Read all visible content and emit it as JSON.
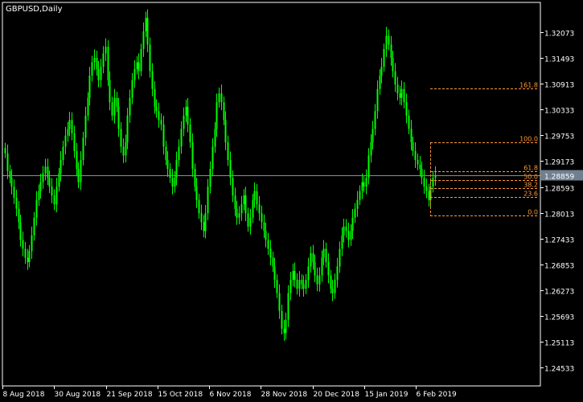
{
  "window": {
    "symbol_label": "GBPUSD,Daily"
  },
  "colors": {
    "background": "#000000",
    "candle": "#00ff00",
    "fib": "#ff9933",
    "current_price_line": "#7f8f9f",
    "current_price_badge": "#708090",
    "axis_text": "#ffffff",
    "frame": "#ffffff"
  },
  "chart_data": {
    "type": "candlestick",
    "title": "GBPUSD,Daily",
    "ylim": [
      1.2411,
      1.3275
    ],
    "y_ticks": [
      "1.32073",
      "1.31493",
      "1.30913",
      "1.30333",
      "1.29753",
      "1.29173",
      "1.28593",
      "1.28013",
      "1.27433",
      "1.26853",
      "1.26273",
      "1.25693",
      "1.25113",
      "1.24533"
    ],
    "x_ticks": [
      "8 Aug 2018",
      "30 Aug 2018",
      "21 Sep 2018",
      "15 Oct 2018",
      "6 Nov 2018",
      "28 Nov 2018",
      "20 Dec 2018",
      "15 Jan 2019",
      "6 Feb 2019"
    ],
    "current_price": "1.28859",
    "closes": [
      1.2935,
      1.2895,
      1.288,
      1.286,
      1.2835,
      1.281,
      1.278,
      1.274,
      1.272,
      1.27,
      1.269,
      1.2715,
      1.275,
      1.279,
      1.283,
      1.285,
      1.287,
      1.289,
      1.2905,
      1.288,
      1.286,
      1.284,
      1.282,
      1.286,
      1.289,
      1.292,
      1.295,
      1.2975,
      1.299,
      1.301,
      1.298,
      1.294,
      1.29,
      1.287,
      1.292,
      1.297,
      1.302,
      1.306,
      1.311,
      1.314,
      1.315,
      1.3125,
      1.31,
      1.313,
      1.316,
      1.3175,
      1.31,
      1.305,
      1.302,
      1.306,
      1.304,
      1.299,
      1.295,
      1.293,
      1.296,
      1.302,
      1.306,
      1.31,
      1.3125,
      1.314,
      1.312,
      1.317,
      1.321,
      1.324,
      1.318,
      1.312,
      1.308,
      1.304,
      1.303,
      1.301,
      1.3,
      1.295,
      1.292,
      1.29,
      1.288,
      1.286,
      1.288,
      1.292,
      1.295,
      1.299,
      1.302,
      1.304,
      1.3,
      1.296,
      1.29,
      1.286,
      1.283,
      1.28,
      1.278,
      1.276,
      1.28,
      1.286,
      1.29,
      1.295,
      1.299,
      1.305,
      1.307,
      1.305,
      1.301,
      1.296,
      1.292,
      1.288,
      1.284,
      1.281,
      1.279,
      1.28,
      1.282,
      1.284,
      1.28,
      1.277,
      1.279,
      1.283,
      1.285,
      1.282,
      1.28,
      1.278,
      1.276,
      1.274,
      1.272,
      1.27,
      1.268,
      1.265,
      1.262,
      1.258,
      1.254,
      1.253,
      1.256,
      1.262,
      1.265,
      1.267,
      1.265,
      1.263,
      1.265,
      1.264,
      1.263,
      1.265,
      1.268,
      1.271,
      1.269,
      1.266,
      1.264,
      1.266,
      1.27,
      1.272,
      1.269,
      1.266,
      1.263,
      1.262,
      1.265,
      1.268,
      1.272,
      1.275,
      1.277,
      1.276,
      1.274,
      1.276,
      1.279,
      1.281,
      1.283,
      1.285,
      1.287,
      1.286,
      1.288,
      1.293,
      1.296,
      1.299,
      1.303,
      1.308,
      1.311,
      1.313,
      1.317,
      1.32,
      1.318,
      1.315,
      1.312,
      1.309,
      1.307,
      1.306,
      1.308,
      1.305,
      1.302,
      1.299,
      1.296,
      1.294,
      1.292,
      1.291,
      1.29,
      1.288,
      1.286,
      1.285,
      1.283,
      1.286,
      1.288,
      1.2886
    ],
    "fibonacci": {
      "levels": [
        {
          "label": "161.8",
          "price": 1.3082
        },
        {
          "label": "100.0",
          "price": 1.296
        },
        {
          "label": "61.8",
          "price": 1.2895
        },
        {
          "label": "50.0",
          "price": 1.2875
        },
        {
          "label": "38.2",
          "price": 1.2857
        },
        {
          "label": "23.6",
          "price": 1.2836
        },
        {
          "label": "0.0",
          "price": 1.2795
        }
      ]
    }
  }
}
